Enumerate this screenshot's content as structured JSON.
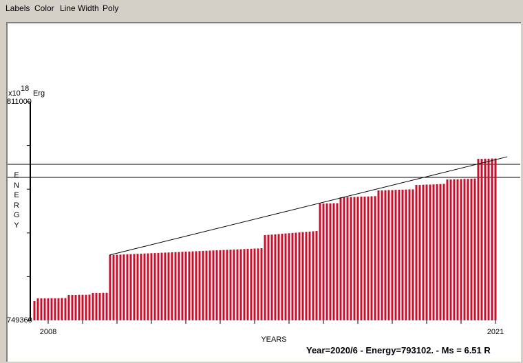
{
  "menu": [
    "Labels",
    "Color",
    "Line Width",
    "Poly"
  ],
  "status": "Year=2020/6 - Energy=793102. - Ms = 6.51 R",
  "chart_data": {
    "type": "bar",
    "y_unit": {
      "prefix": "x10",
      "exponent": "18",
      "unit": "Erg"
    },
    "y_label": "ENERGY",
    "x_label": "YEARS",
    "color": "#c8102e",
    "xlim": [
      2007.48,
      2021.2
    ],
    "ylim": [
      749360,
      811000
    ],
    "xticks": [
      2008,
      {
        "value": 2009,
        "label": null
      },
      {
        "value": 2010,
        "label": null
      },
      {
        "value": 2011,
        "label": null
      },
      {
        "value": 2012,
        "label": null
      },
      {
        "value": 2013,
        "label": null
      },
      {
        "value": 2014,
        "label": null
      },
      {
        "value": 2015,
        "label": null
      },
      {
        "value": 2016,
        "label": null
      },
      {
        "value": 2017,
        "label": null
      },
      {
        "value": 2018,
        "label": null
      },
      {
        "value": 2019,
        "label": null
      },
      {
        "value": 2020,
        "label": null
      },
      2021
    ],
    "yticks": [
      749360,
      {
        "value": 761688,
        "label": null
      },
      {
        "value": 774016,
        "label": null
      },
      {
        "value": 786344,
        "label": null
      },
      {
        "value": 798672,
        "label": null
      },
      811000
    ],
    "hlines": [
      793350,
      789670
    ],
    "trend_line": {
      "x": [
        2009.78,
        2021.34
      ],
      "y": [
        767770,
        795480
      ]
    },
    "x": [
      2007.6,
      2007.7,
      2007.8,
      2007.9,
      2008.0,
      2008.1,
      2008.2,
      2008.3,
      2008.4,
      2008.5,
      2008.6,
      2008.7,
      2008.8,
      2008.9,
      2009.0,
      2009.1,
      2009.2,
      2009.3,
      2009.4,
      2009.5,
      2009.6,
      2009.7,
      2009.8,
      2009.9,
      2010.0,
      2010.1,
      2010.2,
      2010.3,
      2010.4,
      2010.5,
      2010.6,
      2010.7,
      2010.8,
      2010.9,
      2011.0,
      2011.1,
      2011.2,
      2011.3,
      2011.4,
      2011.5,
      2011.6,
      2011.7,
      2011.8,
      2011.9,
      2012.0,
      2012.1,
      2012.2,
      2012.3,
      2012.4,
      2012.5,
      2012.6,
      2012.7,
      2012.8,
      2012.9,
      2013.0,
      2013.1,
      2013.2,
      2013.3,
      2013.4,
      2013.5,
      2013.6,
      2013.7,
      2013.8,
      2013.9,
      2014.0,
      2014.1,
      2014.2,
      2014.3,
      2014.4,
      2014.5,
      2014.6,
      2014.7,
      2014.8,
      2014.9,
      2015.0,
      2015.1,
      2015.2,
      2015.3,
      2015.4,
      2015.5,
      2015.6,
      2015.7,
      2015.8,
      2015.9,
      2016.0,
      2016.1,
      2016.2,
      2016.3,
      2016.4,
      2016.5,
      2016.6,
      2016.7,
      2016.8,
      2016.9,
      2017.0,
      2017.1,
      2017.2,
      2017.3,
      2017.4,
      2017.5,
      2017.6,
      2017.7,
      2017.8,
      2017.9,
      2018.0,
      2018.1,
      2018.2,
      2018.3,
      2018.4,
      2018.5,
      2018.6,
      2018.7,
      2018.8,
      2018.9,
      2019.0,
      2019.1,
      2019.2,
      2019.3,
      2019.4,
      2019.5,
      2019.6,
      2019.7,
      2019.8,
      2019.9,
      2020.0,
      2020.1,
      2020.2,
      2020.3,
      2020.4,
      2020.5,
      2020.6,
      2020.7,
      2020.8,
      2020.9,
      2021.0
    ],
    "values": [
      754790,
      755560,
      755560,
      755560,
      755560,
      755600,
      755600,
      755600,
      755650,
      755650,
      756530,
      756530,
      756530,
      756580,
      756580,
      756580,
      756620,
      757110,
      757110,
      757110,
      757150,
      757150,
      767770,
      767810,
      767860,
      767900,
      767950,
      767990,
      768030,
      768080,
      768120,
      768170,
      768210,
      768250,
      768300,
      768340,
      768380,
      768430,
      768470,
      768510,
      768560,
      768600,
      768640,
      768690,
      768730,
      768770,
      768820,
      768860,
      768900,
      768950,
      768990,
      769030,
      769080,
      769120,
      769160,
      769210,
      769250,
      769290,
      769340,
      769380,
      769420,
      769470,
      769510,
      769550,
      769600,
      769640,
      769710,
      773390,
      773470,
      773540,
      773620,
      773700,
      773780,
      773850,
      773930,
      774010,
      774080,
      774160,
      774240,
      774310,
      774390,
      774470,
      774550,
      782300,
      782300,
      782350,
      782350,
      782400,
      782400,
      784050,
      784050,
      784100,
      784150,
      784150,
      784200,
      784250,
      784250,
      784300,
      784350,
      784400,
      786000,
      786000,
      786050,
      786100,
      786100,
      786150,
      786200,
      786200,
      786250,
      786300,
      786300,
      787540,
      787540,
      787600,
      787650,
      787650,
      787700,
      787750,
      787800,
      787850,
      789090,
      789090,
      789150,
      789150,
      789200,
      789250,
      789250,
      789300,
      789350,
      794900,
      794900,
      794950,
      794950,
      795000,
      795000
    ]
  }
}
